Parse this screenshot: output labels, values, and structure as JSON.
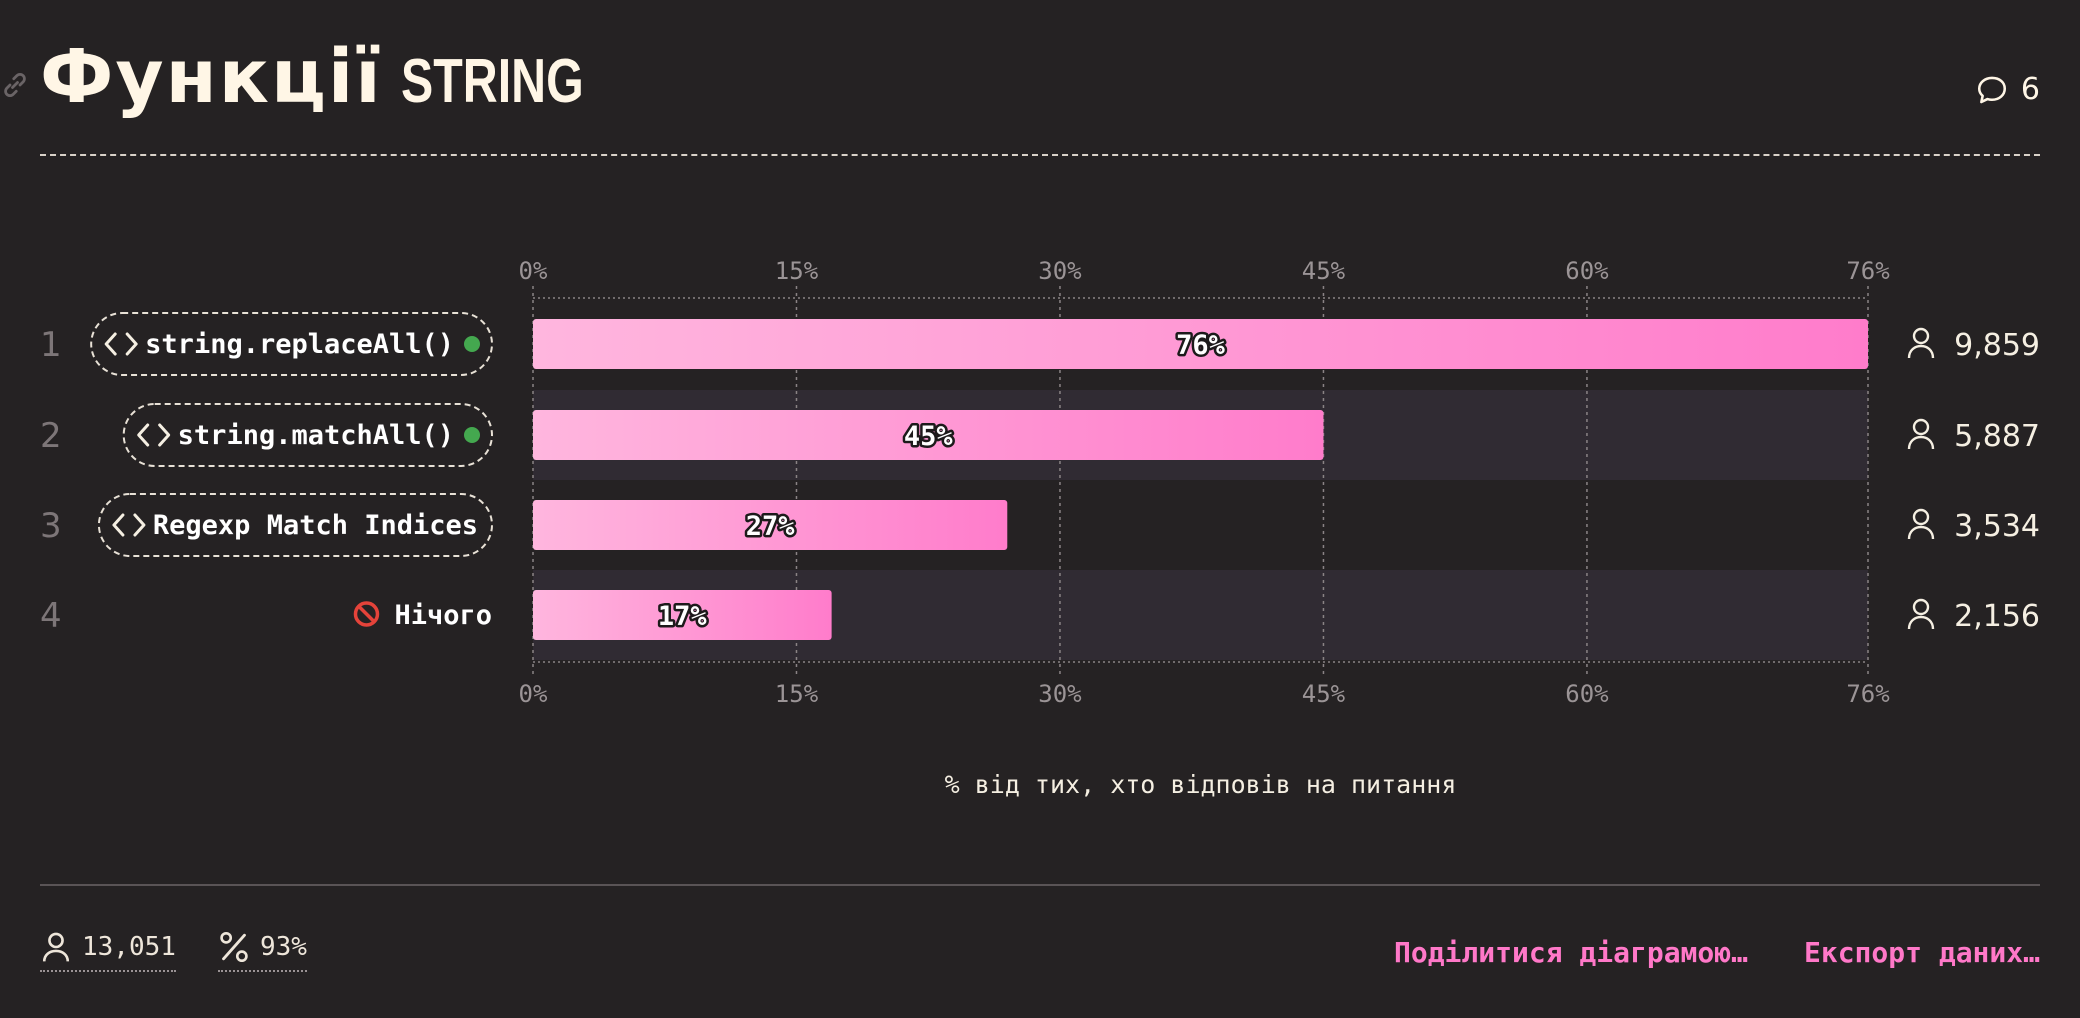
{
  "header": {
    "title_main": "Функції",
    "title_sub": "STRING",
    "comment_count": "6"
  },
  "chart_data": {
    "type": "bar",
    "orientation": "horizontal",
    "categories": [
      "string.replaceAll()",
      "string.matchAll()",
      "Regexp Match Indices",
      "Нічого"
    ],
    "ranks": [
      "1",
      "2",
      "3",
      "4"
    ],
    "values": [
      76,
      45,
      27,
      17
    ],
    "value_labels": [
      "76%",
      "45%",
      "27%",
      "17%"
    ],
    "counts": [
      "9,859",
      "5,887",
      "3,534",
      "2,156"
    ],
    "item_types": [
      "feature",
      "feature",
      "feature",
      "none"
    ],
    "item_badges": [
      true,
      true,
      false,
      false
    ],
    "axis_ticks": [
      0,
      15,
      30,
      45,
      60,
      76
    ],
    "axis_tick_labels": [
      "0%",
      "15%",
      "30%",
      "45%",
      "60%",
      "76%"
    ],
    "xlim": [
      0,
      76
    ],
    "xlabel": "% від тих, хто відповів на питання",
    "grid": true,
    "highlighted_rows": [
      1,
      3
    ],
    "colors": {
      "bar_start": "#ffb6de",
      "bar_end": "#ff7ccb",
      "badge": "#44a84f",
      "row_highlight": "#302b33",
      "grid": "#8a8385",
      "tick_label": "#9b9496",
      "text": "#f5efe2"
    }
  },
  "footer": {
    "respondents": "13,051",
    "percent": "93%",
    "share_label": "Поділитися діаграмою…",
    "export_label": "Експорт даних…"
  }
}
